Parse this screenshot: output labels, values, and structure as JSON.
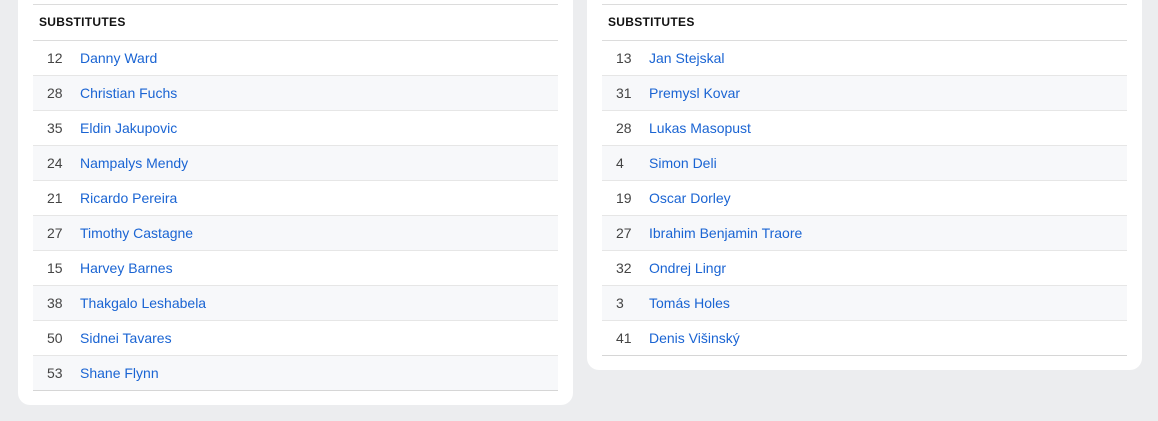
{
  "left": {
    "title": "SUBSTITUTES",
    "players": [
      {
        "num": "12",
        "name": "Danny Ward"
      },
      {
        "num": "28",
        "name": "Christian Fuchs"
      },
      {
        "num": "35",
        "name": "Eldin Jakupovic"
      },
      {
        "num": "24",
        "name": "Nampalys Mendy"
      },
      {
        "num": "21",
        "name": "Ricardo Pereira"
      },
      {
        "num": "27",
        "name": "Timothy Castagne"
      },
      {
        "num": "15",
        "name": "Harvey Barnes"
      },
      {
        "num": "38",
        "name": "Thakgalo Leshabela"
      },
      {
        "num": "50",
        "name": "Sidnei Tavares"
      },
      {
        "num": "53",
        "name": "Shane Flynn"
      }
    ]
  },
  "right": {
    "title": "SUBSTITUTES",
    "players": [
      {
        "num": "13",
        "name": "Jan Stejskal"
      },
      {
        "num": "31",
        "name": "Premysl Kovar"
      },
      {
        "num": "28",
        "name": "Lukas Masopust"
      },
      {
        "num": "4",
        "name": "Simon Deli"
      },
      {
        "num": "19",
        "name": "Oscar Dorley"
      },
      {
        "num": "27",
        "name": "Ibrahim Benjamin Traore"
      },
      {
        "num": "32",
        "name": "Ondrej Lingr"
      },
      {
        "num": "3",
        "name": "Tomás Holes"
      },
      {
        "num": "41",
        "name": "Denis Višinský"
      }
    ]
  }
}
